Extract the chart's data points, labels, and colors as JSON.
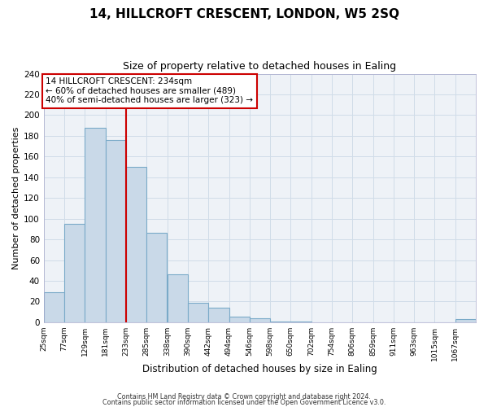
{
  "title": "14, HILLCROFT CRESCENT, LONDON, W5 2SQ",
  "subtitle": "Size of property relative to detached houses in Ealing",
  "xlabel": "Distribution of detached houses by size in Ealing",
  "ylabel": "Number of detached properties",
  "bar_left_edges": [
    25,
    77,
    129,
    181,
    233,
    285,
    338,
    390,
    442,
    494,
    546,
    598,
    650,
    702,
    754,
    806,
    859,
    911,
    963,
    1015,
    1067
  ],
  "bar_heights": [
    29,
    95,
    188,
    176,
    150,
    86,
    46,
    19,
    14,
    5,
    4,
    1,
    1,
    0,
    0,
    0,
    0,
    0,
    0,
    0,
    3
  ],
  "bin_width": 52,
  "bar_color": "#c9d9e8",
  "bar_edge_color": "#7aaac8",
  "property_line_x": 233,
  "property_line_color": "#cc0000",
  "annotation_text": "14 HILLCROFT CRESCENT: 234sqm\n← 60% of detached houses are smaller (489)\n40% of semi-detached houses are larger (323) →",
  "annotation_box_color": "#cc0000",
  "ylim": [
    0,
    240
  ],
  "yticks": [
    0,
    20,
    40,
    60,
    80,
    100,
    120,
    140,
    160,
    180,
    200,
    220,
    240
  ],
  "xtick_labels": [
    "25sqm",
    "77sqm",
    "129sqm",
    "181sqm",
    "233sqm",
    "285sqm",
    "338sqm",
    "390sqm",
    "442sqm",
    "494sqm",
    "546sqm",
    "598sqm",
    "650sqm",
    "702sqm",
    "754sqm",
    "806sqm",
    "859sqm",
    "911sqm",
    "963sqm",
    "1015sqm",
    "1067sqm"
  ],
  "xtick_positions": [
    25,
    77,
    129,
    181,
    233,
    285,
    338,
    390,
    442,
    494,
    546,
    598,
    650,
    702,
    754,
    806,
    859,
    911,
    963,
    1015,
    1067
  ],
  "footer_line1": "Contains HM Land Registry data © Crown copyright and database right 2024.",
  "footer_line2": "Contains public sector information licensed under the Open Government Licence v3.0.",
  "grid_color": "#d0dce8",
  "background_color": "#eef2f7",
  "title_fontsize": 11,
  "subtitle_fontsize": 9,
  "xlabel_fontsize": 8.5,
  "ylabel_fontsize": 8,
  "xtick_fontsize": 6.5,
  "ytick_fontsize": 7.5,
  "footer_fontsize": 5.8
}
